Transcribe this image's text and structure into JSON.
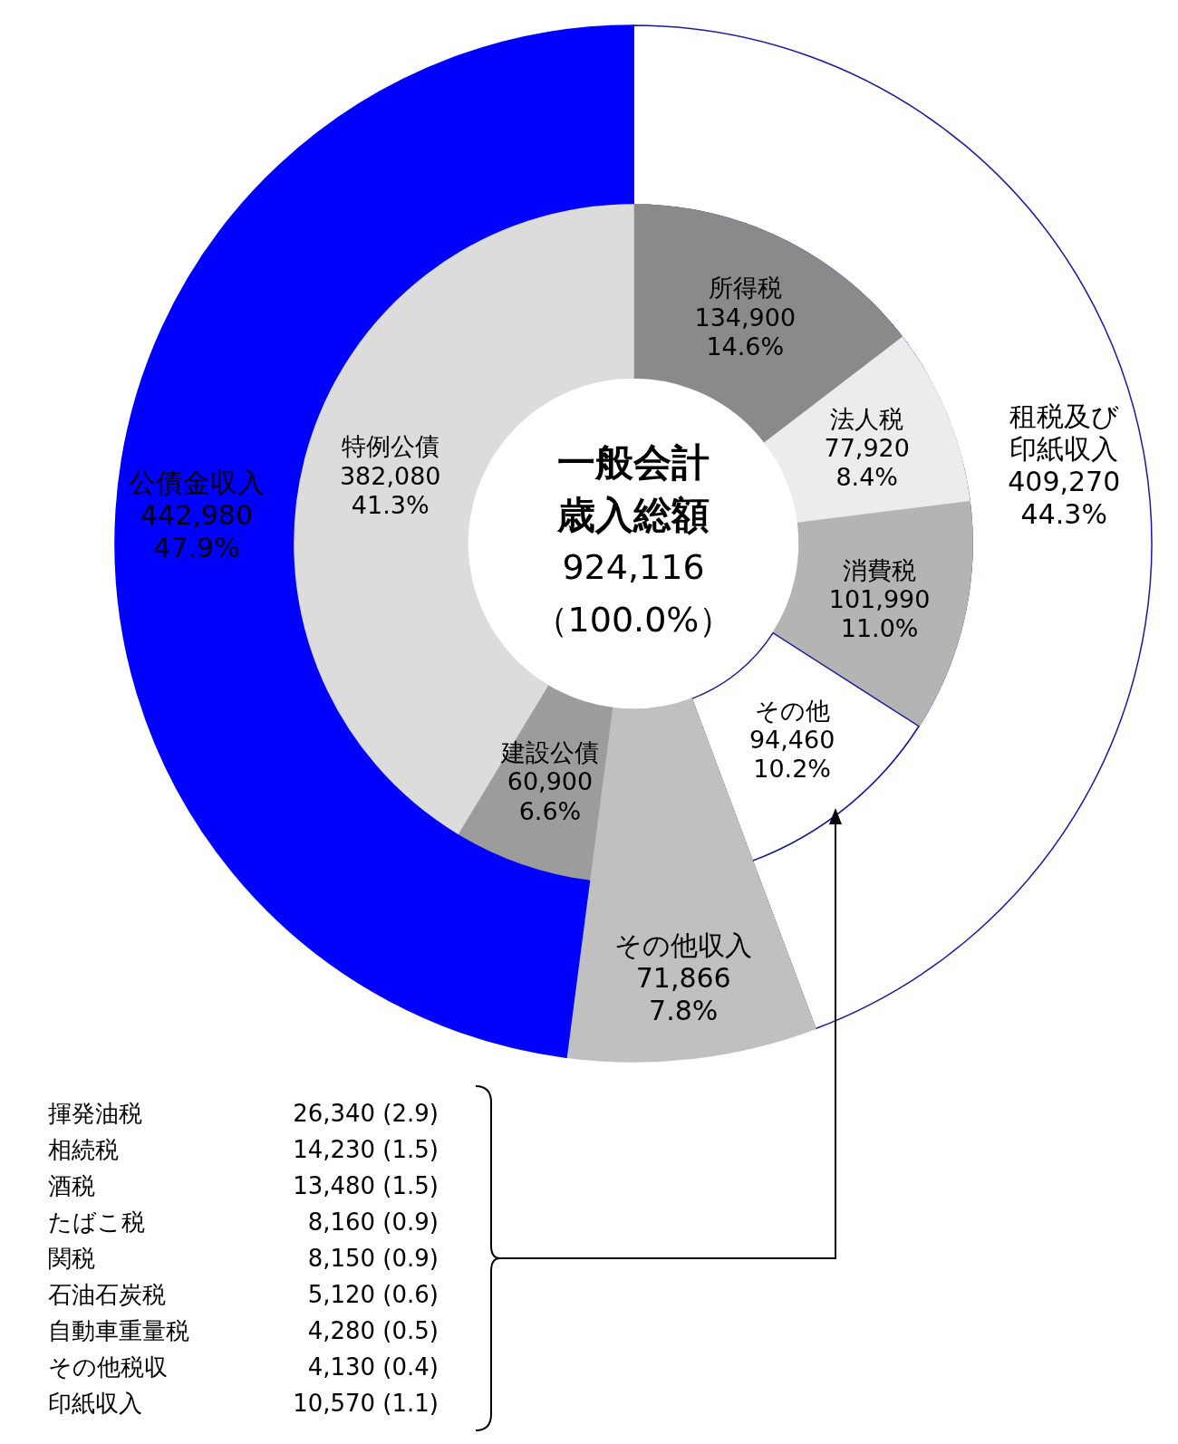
{
  "chart_data": [
    {
      "type": "donut",
      "categories": [
        "租税及び印紙収入",
        "その他収入",
        "公債金収入"
      ],
      "values": [
        409270,
        71866,
        442980
      ],
      "colors": [
        "#ffffff",
        "#c0c0c0",
        "#0000ff"
      ],
      "value_labels": [
        "409,270\n44.3%",
        "71,866\n7.8%",
        "442,980\n47.9%"
      ],
      "annotations": [
        "一般会計",
        "歳入総額",
        "924,116",
        "（100.0%）"
      ]
    },
    {
      "type": "donut",
      "categories": [
        "所得税",
        "法人税",
        "消費税",
        "その他",
        null,
        "建設公債",
        "特例公債"
      ],
      "values": [
        134900,
        77920,
        101990,
        94460,
        71866,
        60900,
        382080
      ],
      "colors": [
        "#8a8a8a",
        "#ececec",
        "#b4b4b4",
        "#ffffff",
        "#c0c0c0",
        "#9c9c9c",
        "#dcdcdc"
      ],
      "value_labels": [
        "134,900\n14.6%",
        "77,920\n8.4%",
        "101,990\n11.0%",
        "94,460\n10.2%",
        null,
        "60,900\n6.6%",
        "382,080\n41.3%"
      ]
    },
    {
      "type": "other",
      "categories": [
        "揮発油税",
        "相続税",
        "酒税",
        "たばこ税",
        "関税",
        "石油石炭税",
        "自動車重量税",
        "その他税収",
        "印紙収入"
      ],
      "value_labels": [
        "26,340 (2.9)",
        "14,230 (1.5)",
        "13,480 (1.5)",
        "8,160 (0.9)",
        "8,150 (0.9)",
        "5,120 (0.6)",
        "4,280 (0.5)",
        "4,130 (0.4)",
        "10,570 (1.1)"
      ]
    }
  ]
}
